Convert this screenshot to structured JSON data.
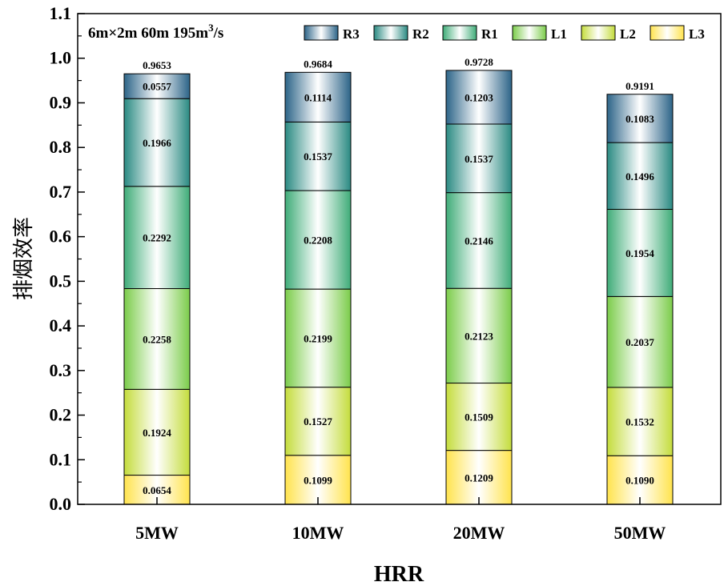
{
  "chart_data": {
    "type": "bar",
    "stacked": true,
    "annotation": "6m×2m 60m 195m",
    "annotation_sup": "3",
    "annotation_suffix": "/s",
    "xlabel": "HRR",
    "ylabel": "排烟效率",
    "ylim": [
      0,
      1.1
    ],
    "yticks": [
      "0.0",
      "0.1",
      "0.2",
      "0.3",
      "0.4",
      "0.5",
      "0.6",
      "0.7",
      "0.8",
      "0.9",
      "1.0",
      "1.1"
    ],
    "categories": [
      "5MW",
      "10MW",
      "20MW",
      "50MW"
    ],
    "series": [
      {
        "name": "L3",
        "values": [
          0.0654,
          0.1099,
          0.1209,
          0.109
        ],
        "labels": [
          "0.0654",
          "0.1099",
          "0.1209",
          "0.1090"
        ],
        "color_end": "#ffe34d",
        "color_mid": "#ffffff"
      },
      {
        "name": "L2",
        "values": [
          0.1924,
          0.1527,
          0.1509,
          0.1532
        ],
        "labels": [
          "0.1924",
          "0.1527",
          "0.1509",
          "0.1532"
        ],
        "color_end": "#c4dc3c",
        "color_mid": "#ffffff"
      },
      {
        "name": "L1",
        "values": [
          0.2258,
          0.2199,
          0.2123,
          0.2037
        ],
        "labels": [
          "0.2258",
          "0.2199",
          "0.2123",
          "0.2037"
        ],
        "color_end": "#7bcc4a",
        "color_mid": "#ffffff"
      },
      {
        "name": "R1",
        "values": [
          0.2292,
          0.2208,
          0.2146,
          0.1954
        ],
        "labels": [
          "0.2292",
          "0.2208",
          "0.2146",
          "0.1954"
        ],
        "color_end": "#3fac78",
        "color_mid": "#ffffff"
      },
      {
        "name": "R2",
        "values": [
          0.1966,
          0.1537,
          0.1537,
          0.1496
        ],
        "labels": [
          "0.1966",
          "0.1537",
          "0.1537",
          "0.1496"
        ],
        "color_end": "#2a8a82",
        "color_mid": "#ffffff"
      },
      {
        "name": "R3",
        "values": [
          0.0557,
          0.1114,
          0.1203,
          0.1083
        ],
        "labels": [
          "0.0557",
          "0.1114",
          "0.1203",
          "0.1083"
        ],
        "color_end": "#2c6488",
        "color_mid": "#ffffff"
      }
    ],
    "totals": [
      "0.9653",
      "0.9684",
      "0.9728",
      "0.9191"
    ],
    "total_values": [
      0.9653,
      0.9684,
      0.9728,
      0.9191
    ],
    "legend_order": [
      "R3",
      "R2",
      "R1",
      "L1",
      "L2",
      "L3"
    ],
    "legend_position": "top-right",
    "grid": false
  }
}
